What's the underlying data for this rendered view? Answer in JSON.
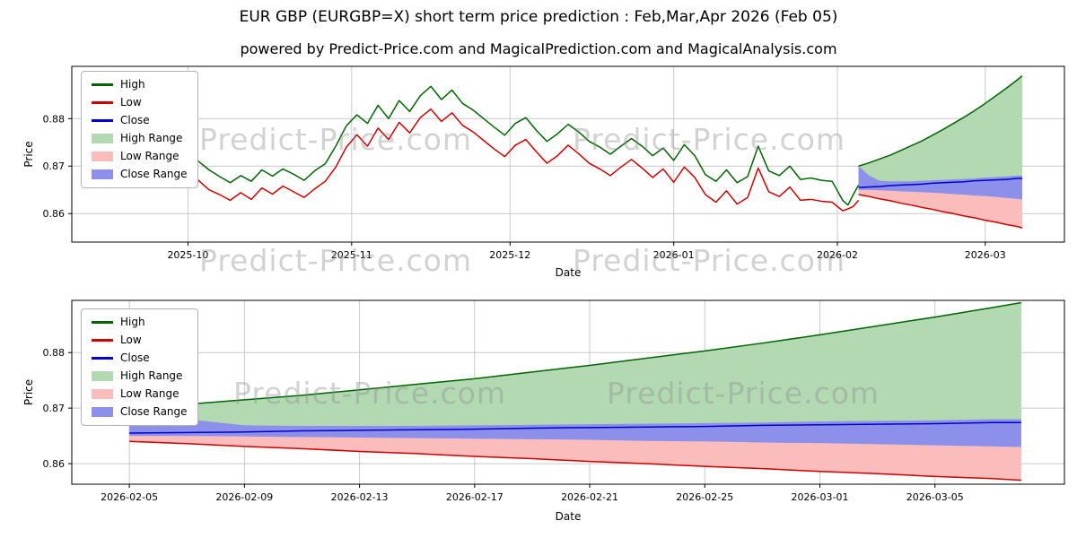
{
  "chart_data": {
    "type": "line",
    "title": "EUR GBP (EURGBP=X) short term price prediction : Feb,Mar,Apr 2026 (Feb 05)",
    "subtitle": "powered by Predict-Price.com and MagicalPrediction.com and MagicalAnalysis.com",
    "watermark_text": "Predict-Price.com",
    "ylabel": "Price",
    "xlabel": "Date",
    "grid": true,
    "legend_position": "upper-left",
    "yticks": [
      0.86,
      0.87,
      0.88
    ],
    "x_unit": "days-from-2025-09-09",
    "colors": {
      "high": "#006400",
      "low": "#cc0000",
      "close": "#0000cd",
      "high_range": "#b2d9b2",
      "low_range": "#fbbcbc",
      "close_range": "#8d90ea",
      "grid": "#c9c9c9",
      "axis": "#000000"
    },
    "legend": [
      {
        "label": "High",
        "swatch": "line",
        "color": "#006400"
      },
      {
        "label": "Low",
        "swatch": "line",
        "color": "#cc0000"
      },
      {
        "label": "Close",
        "swatch": "line",
        "color": "#0000cd"
      },
      {
        "label": "High Range",
        "swatch": "patch",
        "color": "#b2d9b2"
      },
      {
        "label": "Low Range",
        "swatch": "patch",
        "color": "#fbbcbc"
      },
      {
        "label": "Close Range",
        "swatch": "patch",
        "color": "#8d90ea"
      }
    ],
    "top_panel": {
      "xlim": [
        0,
        188
      ],
      "ylim": [
        0.854,
        0.891
      ],
      "xticks": [
        {
          "x": 22,
          "label": "2025-10"
        },
        {
          "x": 53,
          "label": "2025-11"
        },
        {
          "x": 83,
          "label": "2025-12"
        },
        {
          "x": 114,
          "label": "2026-01"
        },
        {
          "x": 145,
          "label": "2026-02"
        },
        {
          "x": 173,
          "label": "2026-03"
        }
      ]
    },
    "bottom_panel": {
      "xlim": [
        147,
        181.5
      ],
      "ylim": [
        0.8563,
        0.8894
      ],
      "xticks": [
        {
          "x": 149,
          "label": "2026-02-05"
        },
        {
          "x": 153,
          "label": "2026-02-09"
        },
        {
          "x": 157,
          "label": "2026-02-13"
        },
        {
          "x": 161,
          "label": "2026-02-17"
        },
        {
          "x": 165,
          "label": "2026-02-21"
        },
        {
          "x": 169,
          "label": "2026-02-25"
        },
        {
          "x": 173,
          "label": "2026-03-01"
        },
        {
          "x": 177,
          "label": "2026-03-05"
        }
      ]
    },
    "historical": {
      "x": [
        14,
        16,
        18,
        20,
        22,
        24,
        26,
        28,
        30,
        32,
        34,
        36,
        38,
        40,
        42,
        44,
        46,
        48,
        50,
        52,
        54,
        56,
        58,
        60,
        62,
        64,
        66,
        68,
        70,
        72,
        74,
        76,
        78,
        80,
        82,
        84,
        86,
        88,
        90,
        92,
        94,
        96,
        98,
        100,
        102,
        104,
        106,
        108,
        110,
        112,
        114,
        116,
        118,
        120,
        122,
        124,
        126,
        128,
        130,
        132,
        134,
        136,
        138,
        140,
        142,
        144,
        146,
        147,
        148,
        149
      ],
      "high": [
        0.8722,
        0.8708,
        0.8725,
        0.8712,
        0.87,
        0.871,
        0.8692,
        0.8678,
        0.8665,
        0.868,
        0.8668,
        0.8692,
        0.8679,
        0.8694,
        0.8683,
        0.867,
        0.869,
        0.8705,
        0.8742,
        0.8785,
        0.8808,
        0.879,
        0.8828,
        0.88,
        0.8838,
        0.8815,
        0.8848,
        0.8868,
        0.884,
        0.886,
        0.8832,
        0.8818,
        0.88,
        0.8782,
        0.8765,
        0.879,
        0.8802,
        0.8775,
        0.8752,
        0.8768,
        0.8788,
        0.8772,
        0.8752,
        0.874,
        0.8725,
        0.8742,
        0.8758,
        0.8742,
        0.8722,
        0.8738,
        0.8712,
        0.8745,
        0.8722,
        0.8682,
        0.8668,
        0.8692,
        0.8665,
        0.8678,
        0.8742,
        0.869,
        0.868,
        0.87,
        0.8672,
        0.8675,
        0.867,
        0.8668,
        0.8628,
        0.8618,
        0.864,
        0.866
      ],
      "low": [
        0.869,
        0.867,
        0.8686,
        0.8672,
        0.866,
        0.867,
        0.865,
        0.864,
        0.8628,
        0.8644,
        0.863,
        0.8654,
        0.8641,
        0.8658,
        0.8646,
        0.8634,
        0.8652,
        0.8668,
        0.8698,
        0.874,
        0.8766,
        0.8742,
        0.878,
        0.8756,
        0.8792,
        0.877,
        0.8802,
        0.882,
        0.8794,
        0.8812,
        0.8786,
        0.8772,
        0.8754,
        0.8736,
        0.872,
        0.8744,
        0.8756,
        0.873,
        0.8706,
        0.8722,
        0.8744,
        0.8726,
        0.8706,
        0.8694,
        0.868,
        0.8698,
        0.8714,
        0.8696,
        0.8676,
        0.8694,
        0.8666,
        0.8698,
        0.8676,
        0.864,
        0.8624,
        0.8648,
        0.862,
        0.8634,
        0.8696,
        0.8646,
        0.8636,
        0.8656,
        0.8628,
        0.863,
        0.8626,
        0.8624,
        0.8606,
        0.861,
        0.8615,
        0.8628
      ]
    },
    "forecast": {
      "x": [
        149,
        151,
        153,
        155,
        157,
        159,
        161,
        163,
        165,
        167,
        169,
        171,
        173,
        175,
        177,
        179,
        180
      ],
      "high": [
        0.87,
        0.8707,
        0.8715,
        0.8723,
        0.8733,
        0.8743,
        0.8753,
        0.8765,
        0.8777,
        0.879,
        0.8803,
        0.8817,
        0.8832,
        0.8848,
        0.8864,
        0.8881,
        0.889
      ],
      "low": [
        0.864,
        0.8636,
        0.8631,
        0.8627,
        0.8622,
        0.8618,
        0.8613,
        0.8609,
        0.8604,
        0.86,
        0.8595,
        0.8591,
        0.8586,
        0.8582,
        0.8577,
        0.8573,
        0.857
      ],
      "close": [
        0.8655,
        0.8656,
        0.8657,
        0.8659,
        0.866,
        0.8661,
        0.8662,
        0.8664,
        0.8665,
        0.8666,
        0.8667,
        0.8669,
        0.867,
        0.8671,
        0.8672,
        0.8674,
        0.8674
      ],
      "close_band_upper": [
        0.87,
        0.868,
        0.8669,
        0.8668,
        0.8668,
        0.8668,
        0.8669,
        0.867,
        0.8671,
        0.8672,
        0.8673,
        0.8674,
        0.8676,
        0.8677,
        0.8678,
        0.868,
        0.868
      ],
      "close_band_lower": [
        0.865,
        0.865,
        0.8649,
        0.8648,
        0.8647,
        0.8646,
        0.8645,
        0.8644,
        0.8643,
        0.8641,
        0.864,
        0.8638,
        0.8637,
        0.8635,
        0.8633,
        0.8631,
        0.863
      ],
      "high_band_lower": 0.8657,
      "low_band_upper": 0.8652
    }
  }
}
